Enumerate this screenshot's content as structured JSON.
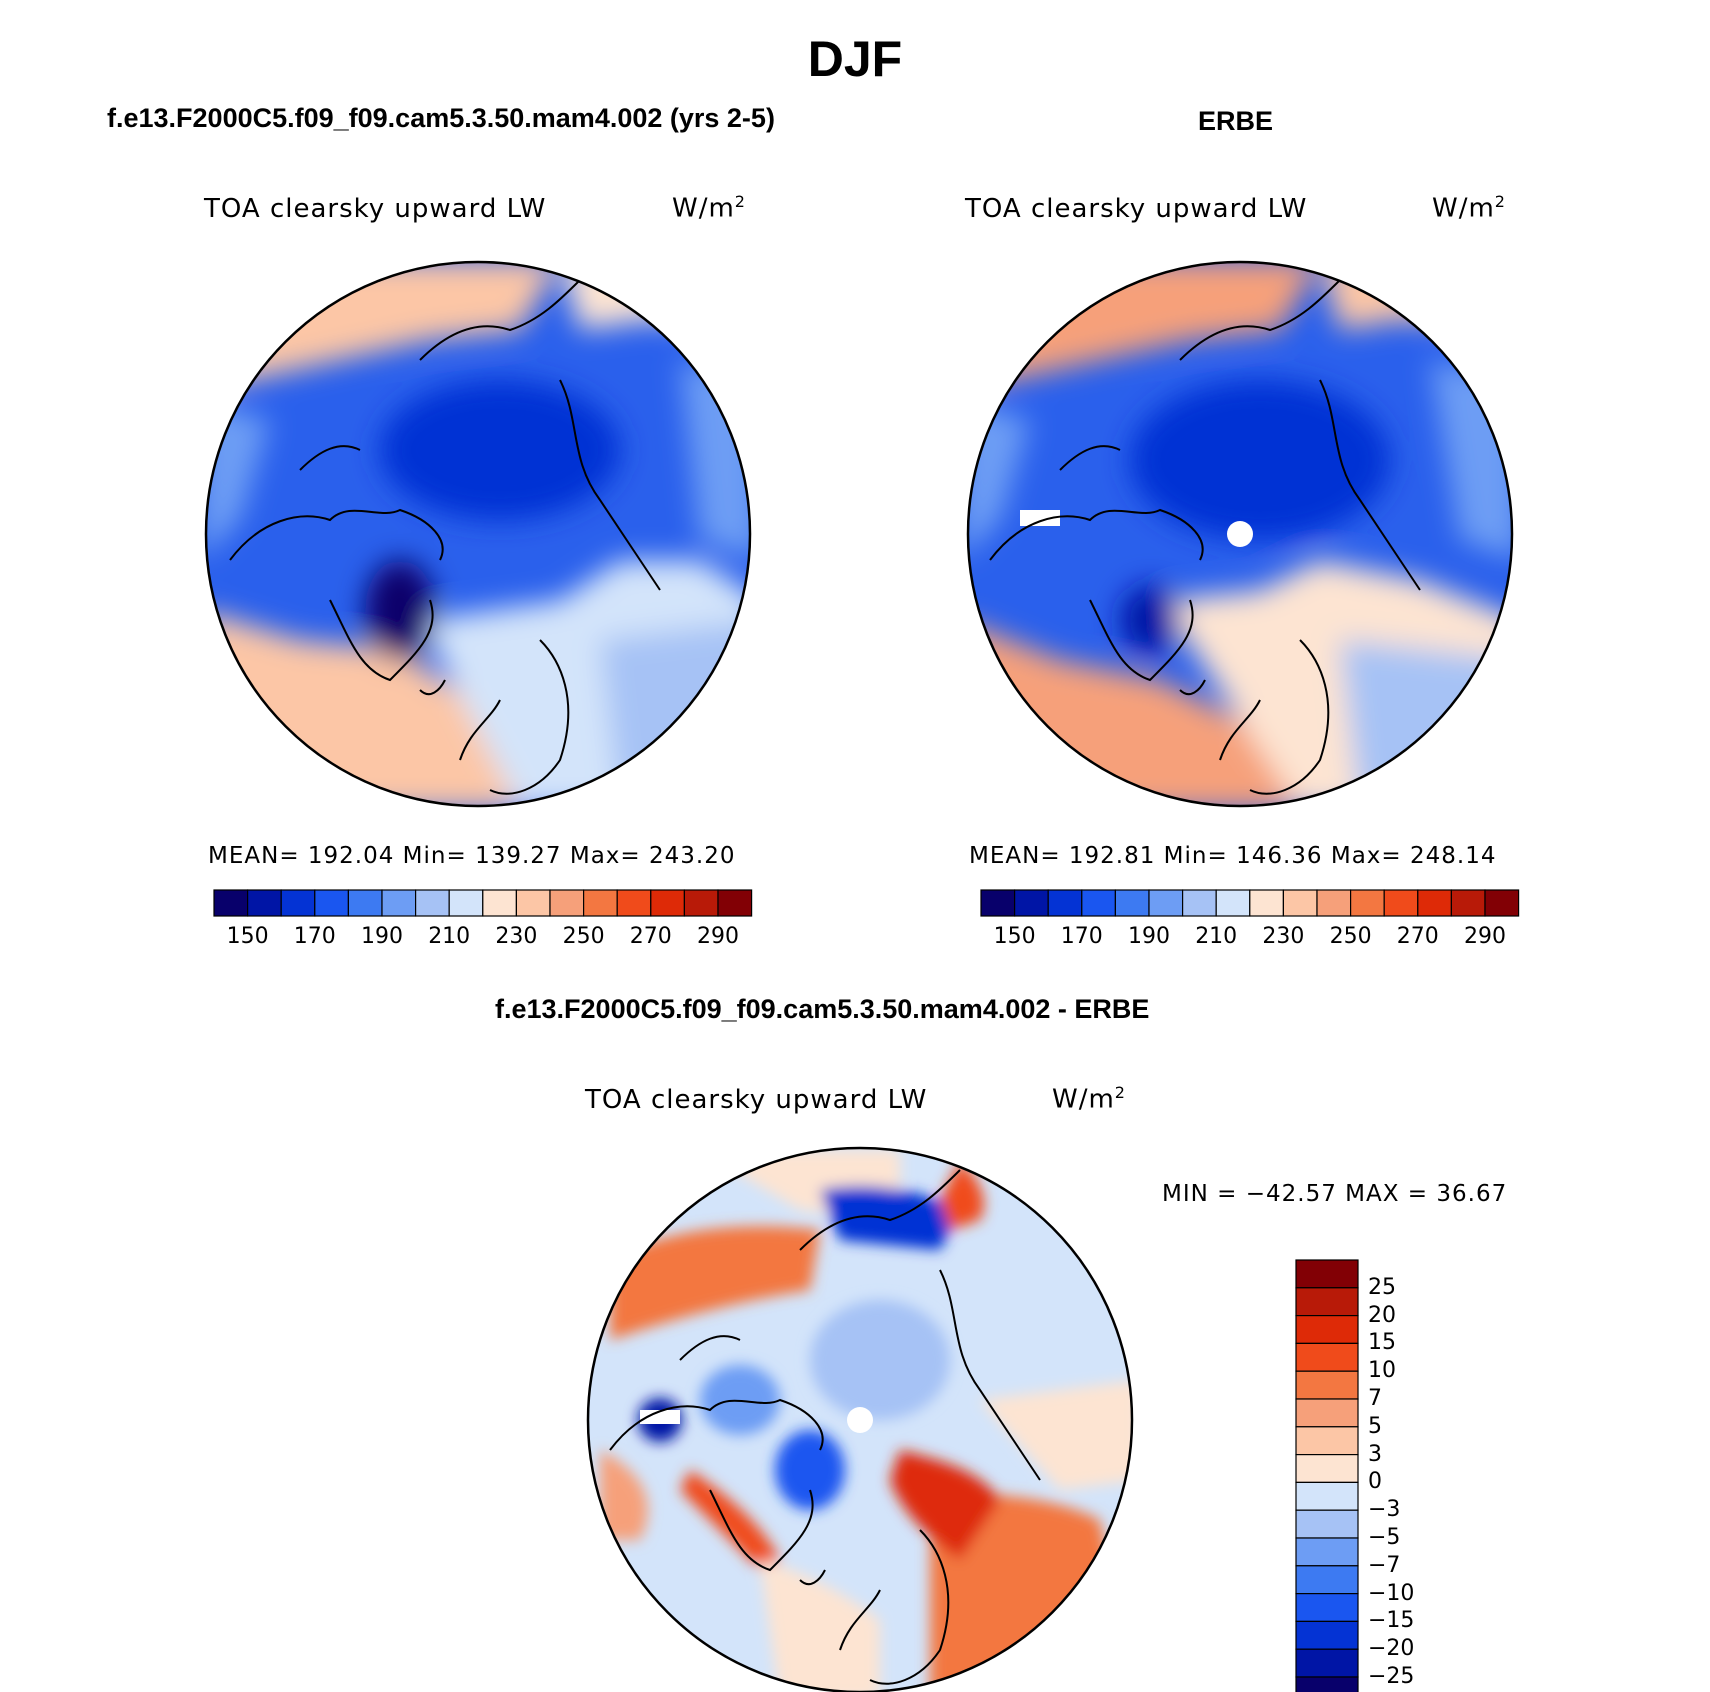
{
  "figure": {
    "title": "DJF",
    "panels": [
      {
        "case_title": "f.e13.F2000C5.f09_f09.cam5.3.50.mam4.002 (yrs 2-5)",
        "variable": "TOA clearsky upward LW",
        "units": "W/m",
        "units_exp": "2",
        "stats": "MEAN= 192.04   Min= 139.27   Max= 243.20",
        "hole_at_pole": false
      },
      {
        "case_title": "ERBE",
        "variable": "TOA clearsky upward LW",
        "units": "W/m",
        "units_exp": "2",
        "stats": "MEAN= 192.81   Min= 146.36   Max= 248.14",
        "hole_at_pole": true
      },
      {
        "case_title": "f.e13.F2000C5.f09_f09.cam5.3.50.mam4.002 - ERBE",
        "variable": "TOA clearsky upward LW",
        "units": "W/m",
        "units_exp": "2",
        "stats": "MIN = −42.57 MAX =   36.67",
        "hole_at_pole": true
      }
    ]
  },
  "abs_colorbar": {
    "colors": [
      "#08006b",
      "#0015a6",
      "#0433d4",
      "#1a56f0",
      "#3d7af2",
      "#6d9df4",
      "#a6c2f5",
      "#d3e4fa",
      "#fde4d2",
      "#fcc6a6",
      "#f6a07a",
      "#f37741",
      "#f04b1b",
      "#de2a07",
      "#b81a08",
      "#820005"
    ],
    "labels": [
      "150",
      "170",
      "190",
      "210",
      "230",
      "250",
      "270",
      "290"
    ]
  },
  "diff_colorbar": {
    "colors": [
      "#820005",
      "#b81a08",
      "#de2a07",
      "#f04b1b",
      "#f37741",
      "#f6a07a",
      "#fcc6a6",
      "#fde4d2",
      "#d3e4fa",
      "#a6c2f5",
      "#6d9df4",
      "#3d7af2",
      "#1a56f0",
      "#0433d4",
      "#0015a6",
      "#08006b"
    ],
    "labels": [
      "25",
      "20",
      "15",
      "10",
      "7",
      "5",
      "3",
      "0",
      "−3",
      "−5",
      "−7",
      "−10",
      "−15",
      "−20",
      "−25"
    ]
  }
}
